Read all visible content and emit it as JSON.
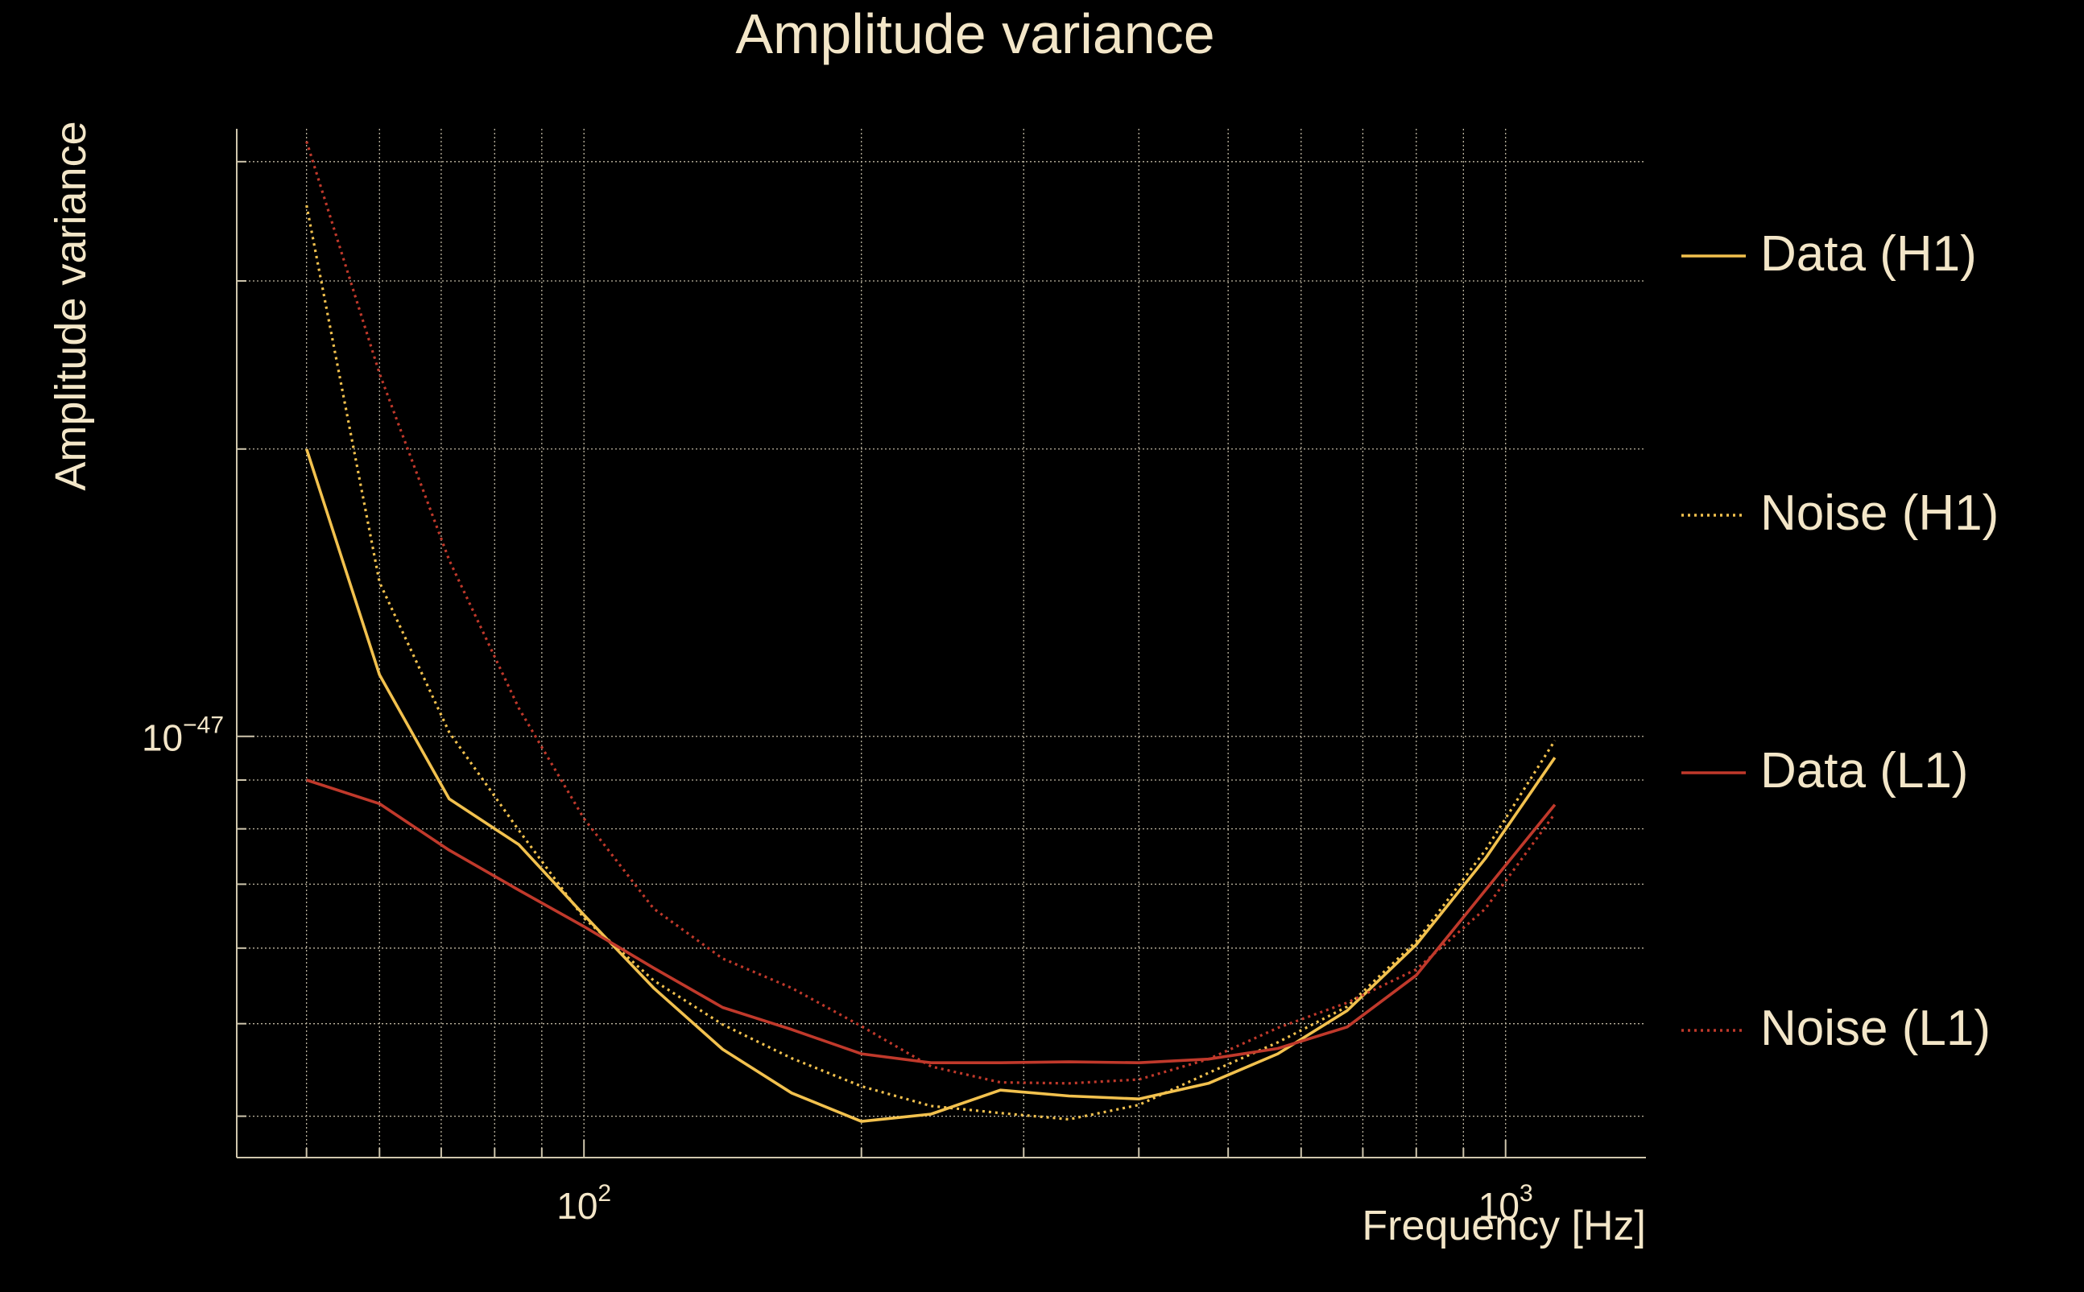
{
  "chart_data": {
    "type": "line",
    "title": "Amplitude variance",
    "xlabel": "Frequency [Hz]",
    "ylabel": "Amplitude variance",
    "xscale": "log",
    "yscale": "log",
    "xlim": [
      42,
      1420
    ],
    "ylim": [
      3.62e-48,
      4.33e-47
    ],
    "grid": true,
    "legend_position": "right",
    "x_ticks": [
      {
        "value": 100,
        "base": "10",
        "exp": "2"
      },
      {
        "value": 1000,
        "base": "10",
        "exp": "3"
      }
    ],
    "y_ticks": [
      {
        "value": 1e-47,
        "base": "10",
        "exp": "−47"
      }
    ],
    "series": [
      {
        "name": "Data (H1)",
        "color": "#f2c14e",
        "style": "solid",
        "x": [
          50,
          60,
          71.4,
          85,
          100,
          119,
          141.4,
          168,
          200,
          238,
          283,
          336,
          400,
          476,
          566,
          673,
          800,
          951,
          1131
        ],
        "y": [
          2e-47,
          1.16e-47,
          8.6e-48,
          7.7e-48,
          6.5e-48,
          5.45e-48,
          4.7e-48,
          4.23e-48,
          3.95e-48,
          4.02e-48,
          4.26e-48,
          4.2e-48,
          4.17e-48,
          4.33e-48,
          4.65e-48,
          5.16e-48,
          6.05e-48,
          7.45e-48,
          9.5e-48
        ]
      },
      {
        "name": "Noise (H1)",
        "color": "#f2c14e",
        "style": "dotted",
        "x": [
          50,
          60,
          71.4,
          85,
          100,
          119,
          141.4,
          168,
          200,
          238,
          283,
          336,
          400,
          476,
          566,
          673,
          800,
          951,
          1131
        ],
        "y": [
          3.6e-47,
          1.45e-47,
          1.01e-47,
          7.97e-48,
          6.45e-48,
          5.55e-48,
          4.99e-48,
          4.6e-48,
          4.3e-48,
          4.1e-48,
          4.03e-48,
          3.97e-48,
          4.11e-48,
          4.44e-48,
          4.78e-48,
          5.21e-48,
          6.1e-48,
          7.6e-48,
          9.9e-48
        ]
      },
      {
        "name": "Data (L1)",
        "color": "#c0392b",
        "style": "solid",
        "x": [
          50,
          60,
          71.4,
          85,
          100,
          119,
          141.4,
          168,
          200,
          238,
          283,
          336,
          400,
          476,
          566,
          673,
          800,
          951,
          1131
        ],
        "y": [
          9e-48,
          8.5e-48,
          7.6e-48,
          6.9e-48,
          6.32e-48,
          5.72e-48,
          5.2e-48,
          4.93e-48,
          4.65e-48,
          4.55e-48,
          4.55e-48,
          4.56e-48,
          4.55e-48,
          4.59e-48,
          4.71e-48,
          4.96e-48,
          5.62e-48,
          6.9e-48,
          8.48e-48
        ]
      },
      {
        "name": "Noise (L1)",
        "color": "#c0392b",
        "style": "dotted",
        "x": [
          50,
          60,
          71.4,
          85,
          100,
          119,
          141.4,
          168,
          200,
          238,
          283,
          336,
          400,
          476,
          566,
          673,
          800,
          951,
          1131
        ],
        "y": [
          4.2e-47,
          2.4e-47,
          1.53e-47,
          1.07e-47,
          8.2e-48,
          6.6e-48,
          5.85e-48,
          5.45e-48,
          4.97e-48,
          4.51e-48,
          4.34e-48,
          4.33e-48,
          4.37e-48,
          4.59e-48,
          4.95e-48,
          5.26e-48,
          5.7e-48,
          6.6e-48,
          8.3e-48
        ]
      }
    ]
  },
  "colors": {
    "background": "#000000",
    "text": "#f3e6c8",
    "grid": "#bdb5a0",
    "axis": "#cfc6ad"
  }
}
